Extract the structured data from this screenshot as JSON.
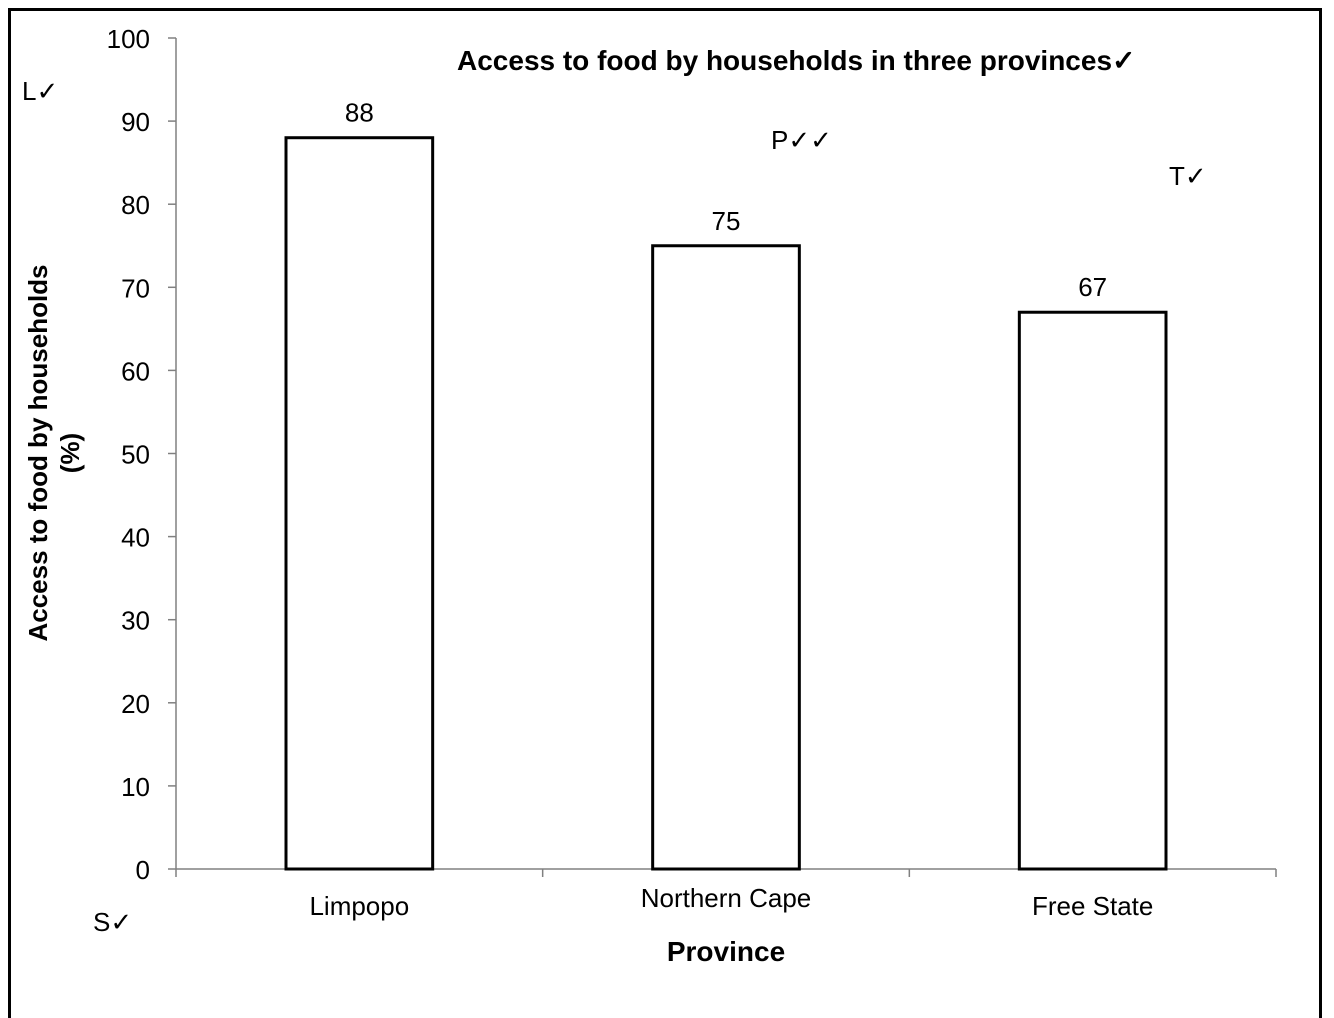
{
  "chart_data": {
    "type": "bar",
    "title": "Access to food by households in three provinces✓",
    "xlabel": "Province",
    "ylabel_lines": [
      "Access to food by households",
      "(%)"
    ],
    "categories": [
      "Limpopo",
      "Northern Cape",
      "Free State"
    ],
    "values": [
      88,
      75,
      67
    ],
    "data_labels": [
      "88",
      "75",
      "67"
    ],
    "ylim": [
      0,
      100
    ],
    "yticks": [
      0,
      10,
      20,
      30,
      40,
      50,
      60,
      70,
      80,
      90,
      100
    ],
    "grid": false,
    "legend": "none",
    "bar_fill": "#ffffff",
    "bar_stroke": "#000000",
    "annotations": {
      "l": "L✓",
      "p": "P✓✓",
      "t": "T✓",
      "s": "S✓"
    }
  }
}
